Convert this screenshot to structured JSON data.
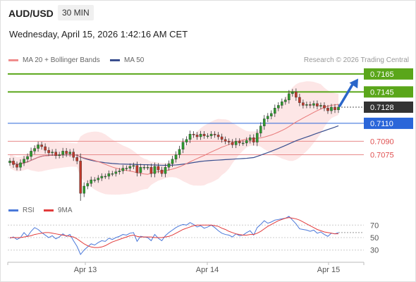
{
  "header": {
    "symbol": "AUD/USD",
    "timeframe": "30 MIN",
    "datetime": "Wednesday, April 15, 2026 1:42:16 AM CET"
  },
  "legend": {
    "ma20": "MA 20 + Bollinger Bands",
    "ma50": "MA 50",
    "credit": "Research © 2026 Trading Central"
  },
  "rsi_legend": {
    "rsi": "RSI",
    "ma9": "9MA"
  },
  "colors": {
    "resistance": "#5aa61a",
    "current": "#333333",
    "pivot": "#2a66d9",
    "support": "#e05050",
    "ma20": "#e87878",
    "ma50": "#3a4f8f",
    "band": "#fde2e2",
    "bull": "#2e9b2e",
    "bear": "#c0392b",
    "rsi": "#4a78d9",
    "rsi_ma": "#e23b3b",
    "arrow": "#2a66c9"
  },
  "chart_data": {
    "type": "candlestick",
    "instrument": "AUD/USD",
    "interval": "30 MIN",
    "x_ticks": [
      "Apr 13",
      "Apr 14",
      "Apr 15"
    ],
    "y_range": [
      0.7018,
      0.7172
    ],
    "levels": [
      {
        "value": 0.7165,
        "label": "0.7165",
        "kind": "resistance"
      },
      {
        "value": 0.7145,
        "label": "0.7145",
        "kind": "resistance"
      },
      {
        "value": 0.7128,
        "label": "0.7128",
        "kind": "current"
      },
      {
        "value": 0.711,
        "label": "0.7110",
        "kind": "pivot"
      },
      {
        "value": 0.709,
        "label": "0.7090",
        "kind": "support"
      },
      {
        "value": 0.7075,
        "label": "0.7075",
        "kind": "support"
      }
    ],
    "closes": [
      0.7068,
      0.7064,
      0.7061,
      0.7066,
      0.707,
      0.7073,
      0.7079,
      0.7082,
      0.7086,
      0.7084,
      0.708,
      0.7077,
      0.7078,
      0.7074,
      0.7075,
      0.7079,
      0.7076,
      0.7078,
      0.7072,
      0.7068,
      0.7032,
      0.704,
      0.7043,
      0.7047,
      0.7047,
      0.7049,
      0.7051,
      0.7051,
      0.7054,
      0.7054,
      0.7056,
      0.7057,
      0.706,
      0.706,
      0.7062,
      0.7063,
      0.7055,
      0.7061,
      0.7061,
      0.7061,
      0.7054,
      0.7062,
      0.7058,
      0.7054,
      0.7061,
      0.7065,
      0.707,
      0.7075,
      0.7081,
      0.7089,
      0.7092,
      0.7098,
      0.7097,
      0.7095,
      0.7098,
      0.7096,
      0.7096,
      0.7098,
      0.7097,
      0.7095,
      0.7092,
      0.709,
      0.7089,
      0.7086,
      0.709,
      0.7088,
      0.7088,
      0.7091,
      0.7094,
      0.7089,
      0.7099,
      0.7107,
      0.7115,
      0.7118,
      0.7121,
      0.7127,
      0.713,
      0.7134,
      0.7136,
      0.7143,
      0.7145,
      0.7139,
      0.7133,
      0.713,
      0.7131,
      0.713,
      0.7132,
      0.7129,
      0.713,
      0.7127,
      0.7124,
      0.7128,
      0.7125,
      0.7128
    ],
    "rsi": {
      "levels": [
        70,
        50,
        30
      ],
      "range": [
        15,
        85
      ],
      "rsi": [
        49,
        51,
        47,
        50,
        58,
        52,
        60,
        66,
        63,
        58,
        54,
        50,
        53,
        48,
        51,
        56,
        52,
        55,
        45,
        36,
        23,
        30,
        35,
        40,
        38,
        42,
        45,
        44,
        49,
        47,
        50,
        52,
        55,
        54,
        57,
        58,
        44,
        52,
        51,
        50,
        45,
        55,
        49,
        45,
        53,
        58,
        62,
        66,
        69,
        71,
        70,
        74,
        71,
        67,
        69,
        65,
        67,
        70,
        66,
        61,
        57,
        55,
        54,
        51,
        56,
        53,
        54,
        58,
        61,
        54,
        66,
        71,
        77,
        73,
        75,
        78,
        79,
        80,
        81,
        84,
        78,
        72,
        64,
        63,
        62,
        60,
        62,
        57,
        59,
        55,
        52,
        57,
        56,
        58
      ],
      "ma9": [
        50,
        50,
        50,
        50,
        51,
        52,
        53,
        55,
        56,
        57,
        58,
        58,
        57,
        56,
        55,
        54,
        53,
        52,
        51,
        48,
        44,
        40,
        37,
        35,
        34,
        34,
        35,
        37,
        40,
        43,
        45,
        47,
        49,
        51,
        53,
        54,
        52,
        51,
        51,
        51,
        51,
        50,
        50,
        50,
        51,
        52,
        54,
        57,
        60,
        63,
        65,
        67,
        69,
        70,
        70,
        70,
        70,
        70,
        69,
        68,
        65,
        63,
        60,
        58,
        56,
        55,
        54,
        54,
        55,
        55,
        57,
        60,
        64,
        68,
        71,
        74,
        77,
        79,
        81,
        82,
        81,
        80,
        78,
        75,
        72,
        69,
        66,
        63,
        61,
        59,
        58,
        57,
        56,
        56
      ]
    }
  }
}
